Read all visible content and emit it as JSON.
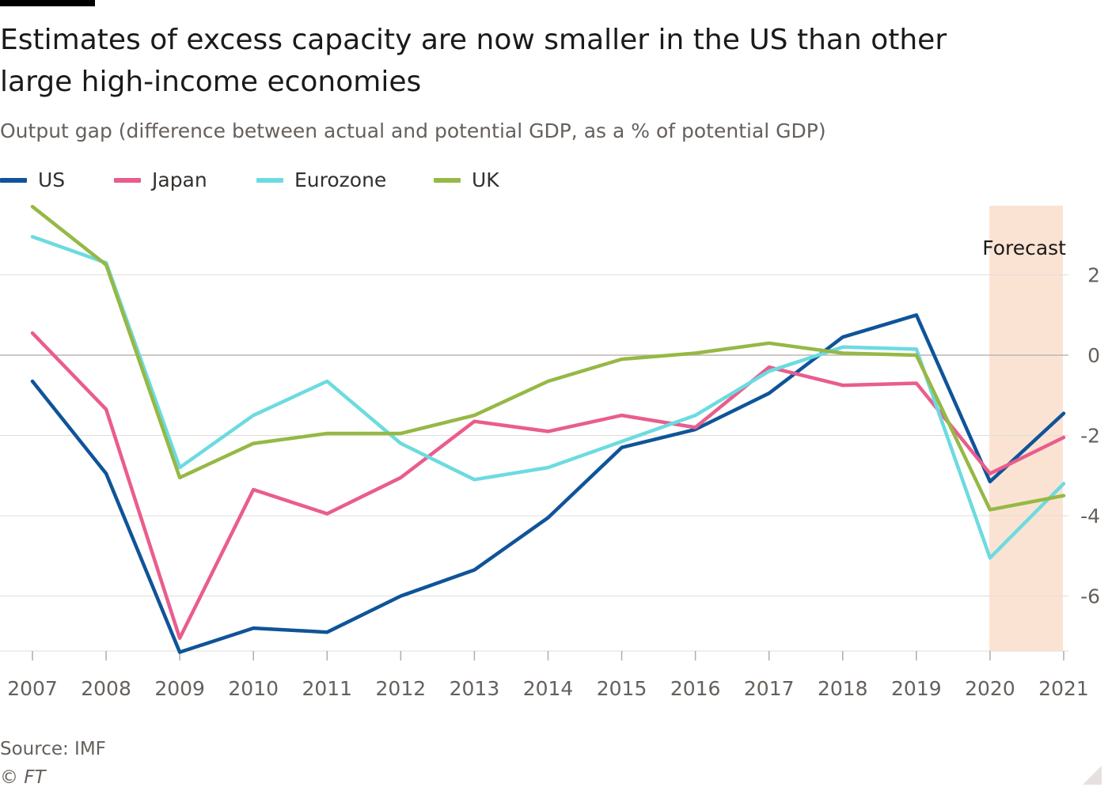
{
  "title": "Estimates of excess capacity are now smaller in the US than other large high-income economies",
  "subtitle": "Output gap (difference between actual and potential GDP, as a % of potential GDP)",
  "source": "Source: IMF",
  "credit": "© FT",
  "colors": {
    "background": "#ffffff",
    "forecast_band": "#fbe3d3",
    "gridline": "#e3ddd9",
    "zero_line": "#bdb6b1",
    "axis_text": "#66605c"
  },
  "chart_data": {
    "type": "line",
    "x": [
      2007,
      2008,
      2009,
      2010,
      2011,
      2012,
      2013,
      2014,
      2015,
      2016,
      2017,
      2018,
      2019,
      2020,
      2021
    ],
    "x_tick_labels": [
      "2007",
      "2008",
      "2009",
      "2010",
      "2011",
      "2012",
      "2013",
      "2014",
      "2015",
      "2016",
      "2017",
      "2018",
      "2019",
      "2020",
      "2021"
    ],
    "y_ticks": [
      2,
      0,
      -2,
      -4,
      -6
    ],
    "y_tick_labels": [
      "2",
      "0",
      "-2",
      "-4",
      "-6"
    ],
    "ylim": [
      -7.4,
      3.7
    ],
    "xlim": [
      2007,
      2021
    ],
    "y_axis_side": "right",
    "grid": true,
    "legend_position": "top-left",
    "annotation": {
      "text": "Forecast",
      "x_start": 2020,
      "x_end": 2021
    },
    "series": [
      {
        "name": "US",
        "color": "#0f5499",
        "values": [
          -0.65,
          -2.95,
          -7.4,
          -6.8,
          -6.9,
          -6.0,
          -5.35,
          -4.05,
          -2.3,
          -1.85,
          -0.95,
          0.45,
          1.0,
          -3.15,
          -1.45
        ]
      },
      {
        "name": "Japan",
        "color": "#e95d8c",
        "values": [
          0.55,
          -1.35,
          -7.05,
          -3.35,
          -3.95,
          -3.05,
          -1.65,
          -1.9,
          -1.5,
          -1.8,
          -0.3,
          -0.75,
          -0.7,
          -2.95,
          -2.05
        ]
      },
      {
        "name": "Eurozone",
        "color": "#6cdbe0",
        "values": [
          2.95,
          2.3,
          -2.8,
          -1.5,
          -0.65,
          -2.2,
          -3.1,
          -2.8,
          -2.15,
          -1.5,
          -0.4,
          0.2,
          0.15,
          -5.05,
          -3.2
        ]
      },
      {
        "name": "UK",
        "color": "#96b846",
        "values": [
          3.7,
          2.25,
          -3.05,
          -2.2,
          -1.95,
          -1.95,
          -1.5,
          -0.65,
          -0.1,
          0.05,
          0.3,
          0.05,
          0.0,
          -3.85,
          -3.5
        ]
      }
    ]
  }
}
